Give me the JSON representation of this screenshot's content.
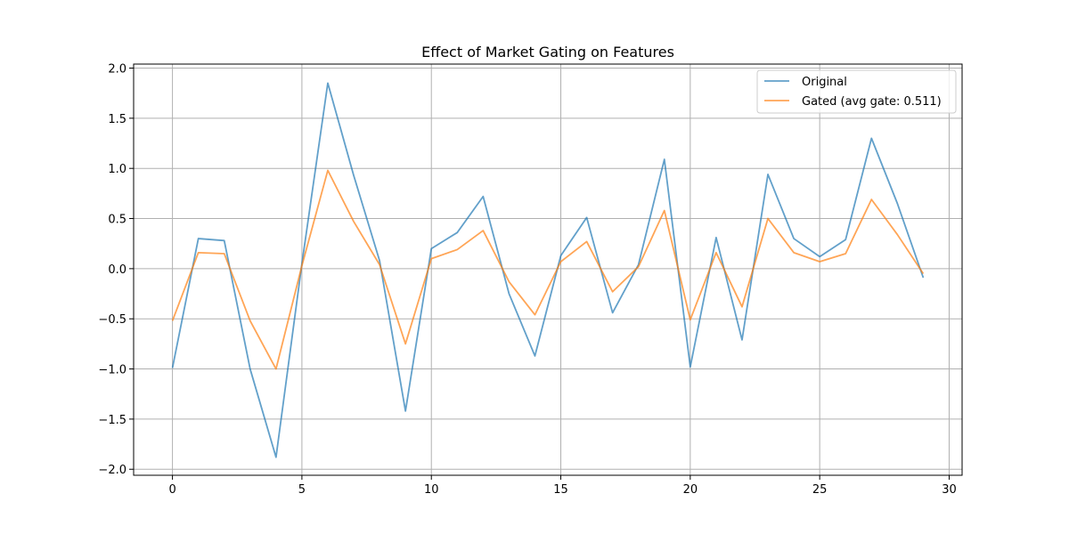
{
  "chart_data": {
    "type": "line",
    "title": "Effect of Market Gating on Features",
    "xlabel": "",
    "ylabel": "",
    "xlim": [
      -1.5,
      30.5
    ],
    "ylim": [
      -2.06,
      2.04
    ],
    "xticks": [
      0,
      5,
      10,
      15,
      20,
      25,
      30
    ],
    "yticks": [
      -2.0,
      -1.5,
      -1.0,
      -0.5,
      0.0,
      0.5,
      1.0,
      1.5,
      2.0
    ],
    "xtick_labels": [
      "0",
      "5",
      "10",
      "15",
      "20",
      "25",
      "30"
    ],
    "ytick_labels": [
      "−2.0",
      "−1.5",
      "−1.0",
      "−0.5",
      "0.0",
      "0.5",
      "1.0",
      "1.5",
      "2.0"
    ],
    "grid": true,
    "legend_position": "top-right",
    "x": [
      0,
      1,
      2,
      3,
      4,
      5,
      6,
      7,
      8,
      9,
      10,
      11,
      12,
      13,
      14,
      15,
      16,
      17,
      18,
      19,
      20,
      21,
      22,
      23,
      24,
      25,
      26,
      27,
      28,
      29
    ],
    "series": [
      {
        "name": "Original",
        "color": "#1f77b4",
        "values": [
          -0.99,
          0.3,
          0.28,
          -1.0,
          -1.88,
          0.05,
          1.85,
          0.93,
          0.08,
          -1.42,
          0.2,
          0.36,
          0.72,
          -0.25,
          -0.87,
          0.13,
          0.51,
          -0.44,
          0.04,
          1.09,
          -0.98,
          0.31,
          -0.71,
          0.94,
          0.3,
          0.12,
          0.29,
          1.3,
          0.65,
          -0.09
        ]
      },
      {
        "name": "Gated (avg gate: 0.511)",
        "color": "#ff7f0e",
        "values": [
          -0.52,
          0.16,
          0.15,
          -0.52,
          -1.0,
          0.03,
          0.98,
          0.47,
          0.04,
          -0.75,
          0.1,
          0.19,
          0.38,
          -0.13,
          -0.46,
          0.07,
          0.27,
          -0.23,
          0.02,
          0.58,
          -0.51,
          0.16,
          -0.38,
          0.5,
          0.16,
          0.07,
          0.15,
          0.69,
          0.34,
          -0.05
        ]
      }
    ]
  }
}
